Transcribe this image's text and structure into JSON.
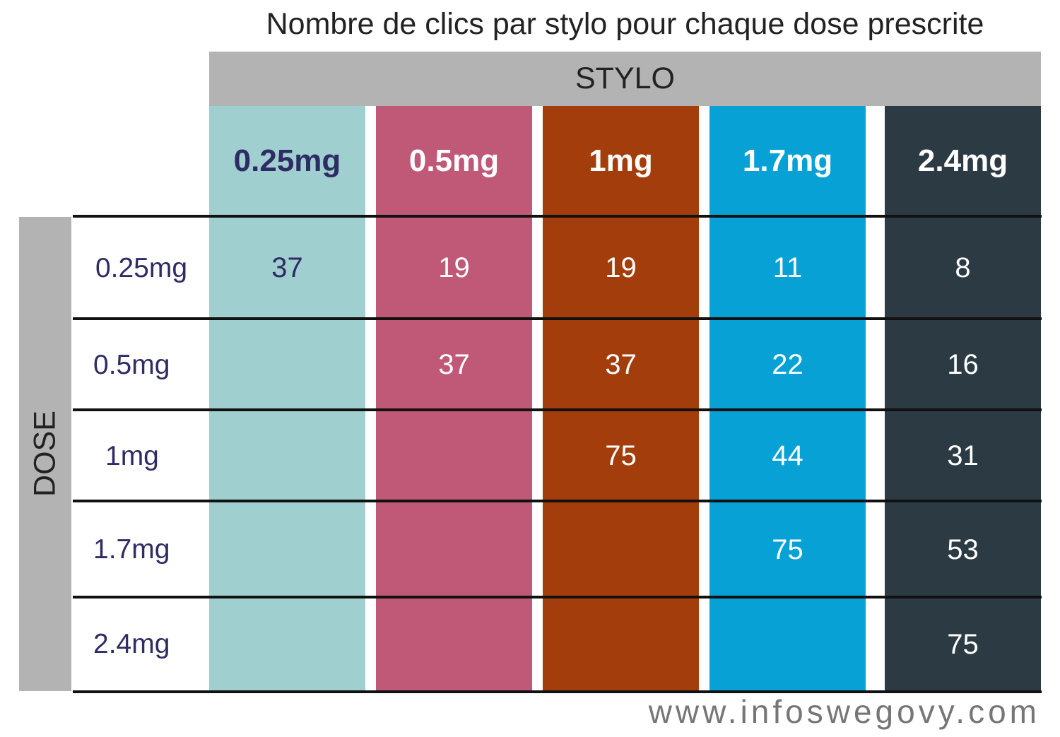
{
  "title": "Nombre de clics par stylo pour chaque dose prescrite",
  "footer": "www.infoswegovy.com",
  "chart_data": {
    "type": "table",
    "title": "Nombre de clics par stylo pour chaque dose prescrite",
    "column_group_label": "STYLO",
    "row_group_label": "DOSE",
    "columns": [
      {
        "label": "0.25mg",
        "color": "#a0cfd0",
        "text_color": "#2e2c64"
      },
      {
        "label": "0.5mg",
        "color": "#c05878",
        "text_color": "#ffffff"
      },
      {
        "label": "1mg",
        "color": "#a33e0c",
        "text_color": "#ffffff"
      },
      {
        "label": "1.7mg",
        "color": "#07a1d6",
        "text_color": "#ffffff"
      },
      {
        "label": "2.4mg",
        "color": "#2c3a44",
        "text_color": "#ffffff"
      }
    ],
    "rows": [
      {
        "label": "0.25mg",
        "values": [
          "37",
          "19",
          "19",
          "11",
          "8"
        ]
      },
      {
        "label": "0.5mg",
        "values": [
          "",
          "37",
          "37",
          "22",
          "16"
        ]
      },
      {
        "label": "1mg",
        "values": [
          "",
          "",
          "75",
          "44",
          "31"
        ]
      },
      {
        "label": "1.7mg",
        "values": [
          "",
          "",
          "",
          "75",
          "53"
        ]
      },
      {
        "label": "2.4mg",
        "values": [
          "",
          "",
          "",
          "",
          "75"
        ]
      }
    ]
  }
}
